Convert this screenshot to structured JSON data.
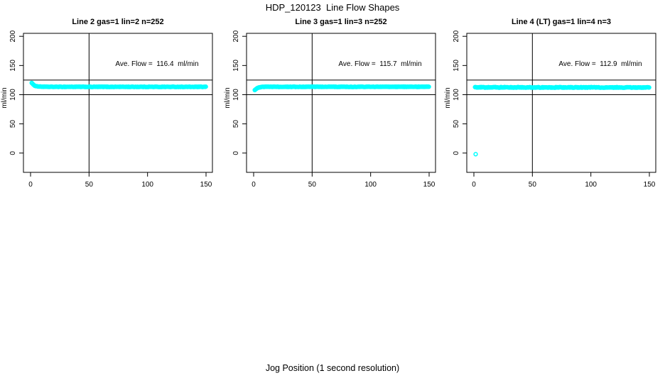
{
  "figure": {
    "title": "HDP_120123  Line Flow Shapes",
    "xlabel": "Jog Position (1 second resolution)"
  },
  "chart_data": {
    "type": "scatter",
    "title": "HDP_120123  Line Flow Shapes",
    "xlabel": "Jog Position (1 second resolution)",
    "ylabel": "ml/min",
    "x_ticks": [
      0,
      50,
      100,
      150
    ],
    "y_ticks": [
      0,
      50,
      100,
      150,
      200
    ],
    "xlim": [
      -6,
      156
    ],
    "ylim": [
      -33,
      205
    ],
    "grid": false,
    "marker": {
      "shape": "open-circle",
      "color": "#00ffff"
    },
    "ref_lines": {
      "horizontal": [
        100,
        125
      ],
      "vertical": [
        50
      ],
      "color": "#000000"
    },
    "panels": [
      {
        "title": "Line 2 gas=1 lin=2 n=252",
        "annotation": "Ave. Flow =  116.4  ml/min",
        "ave_flow_ml_min": 116.4,
        "n": 252,
        "series_profile": [
          [
            1,
            120.5
          ],
          [
            1.5,
            119.2
          ],
          [
            2,
            117.6
          ],
          [
            3,
            116.1
          ],
          [
            4,
            115.2
          ],
          [
            5,
            114.6
          ],
          [
            7,
            114.0
          ],
          [
            10,
            113.7
          ],
          [
            15,
            113.5
          ],
          [
            150,
            113.4
          ]
        ],
        "jitter": 0.35,
        "x_step": 0.6,
        "extra_points": []
      },
      {
        "title": "Line 3 gas=1 lin=3 n=252",
        "annotation": "Ave. Flow =  115.7  ml/min",
        "ave_flow_ml_min": 115.7,
        "n": 252,
        "series_profile": [
          [
            1,
            107.8
          ],
          [
            1.5,
            108.8
          ],
          [
            2,
            109.8
          ],
          [
            3,
            111.3
          ],
          [
            4,
            112.2
          ],
          [
            6,
            113.1
          ],
          [
            10,
            113.5
          ],
          [
            150,
            113.6
          ]
        ],
        "jitter": 0.35,
        "x_step": 0.6,
        "extra_points": []
      },
      {
        "title": "Line 4 (LT) gas=1 lin=4 n=3",
        "annotation": "Ave. Flow =  112.9  ml/min",
        "ave_flow_ml_min": 112.9,
        "n": 3,
        "series_profile": [
          [
            1,
            112.6
          ],
          [
            150,
            112.4
          ]
        ],
        "jitter": 0.55,
        "x_step": 0.6,
        "extra_points": [
          [
            1.5,
            -2
          ]
        ]
      }
    ]
  }
}
